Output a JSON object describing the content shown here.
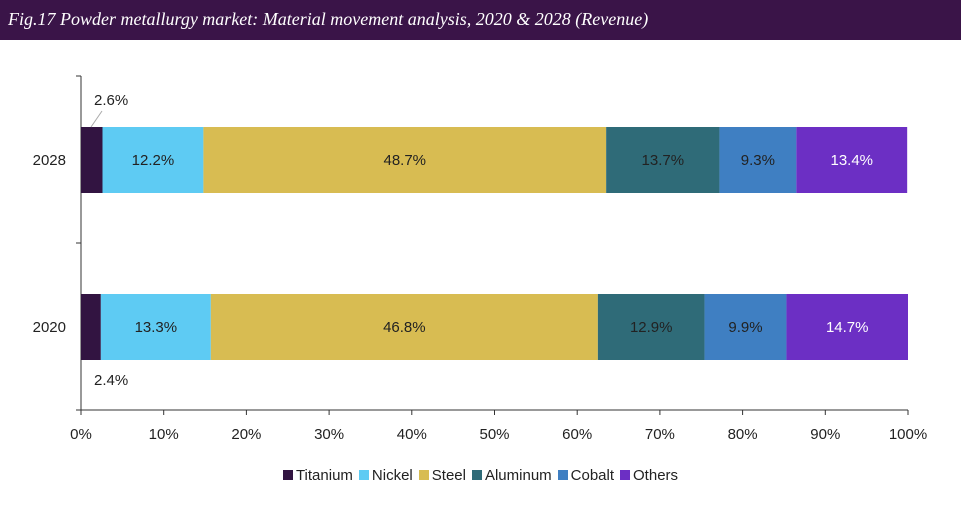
{
  "header": {
    "title": "Fig.17  Powder metallurgy market: Material movement analysis, 2020 & 2028 (Revenue)"
  },
  "chart_data": {
    "type": "bar",
    "orientation": "horizontal",
    "stacked": true,
    "percent": true,
    "categories": [
      "2028",
      "2020"
    ],
    "xlim": [
      0,
      100
    ],
    "x_ticks": [
      "0%",
      "10%",
      "20%",
      "30%",
      "40%",
      "50%",
      "60%",
      "70%",
      "80%",
      "90%",
      "100%"
    ],
    "grid": false,
    "legend_position": "bottom",
    "series": [
      {
        "name": "Titanium",
        "color": "#321441",
        "values": [
          2.6,
          2.4
        ],
        "labels": [
          "2.6%",
          "2.4%"
        ],
        "label_color": "#222222"
      },
      {
        "name": "Nickel",
        "color": "#5ecbf3",
        "values": [
          12.2,
          13.3
        ],
        "labels": [
          "12.2%",
          "13.3%"
        ],
        "label_color": "#222222"
      },
      {
        "name": "Steel",
        "color": "#d8bc52",
        "values": [
          48.7,
          46.8
        ],
        "labels": [
          "48.7%",
          "46.8%"
        ],
        "label_color": "#222222"
      },
      {
        "name": "Aluminum",
        "color": "#2f6b78",
        "values": [
          13.7,
          12.9
        ],
        "labels": [
          "13.7%",
          "12.9%"
        ],
        "label_color": "#222222"
      },
      {
        "name": "Cobalt",
        "color": "#3f7fc2",
        "values": [
          9.3,
          9.9
        ],
        "labels": [
          "9.3%",
          "9.9%"
        ],
        "label_color": "#222222"
      },
      {
        "name": "Others",
        "color": "#6c2fc4",
        "values": [
          13.4,
          14.7
        ],
        "labels": [
          "13.4%",
          "14.7%"
        ],
        "label_color": "#ffffff"
      }
    ]
  }
}
